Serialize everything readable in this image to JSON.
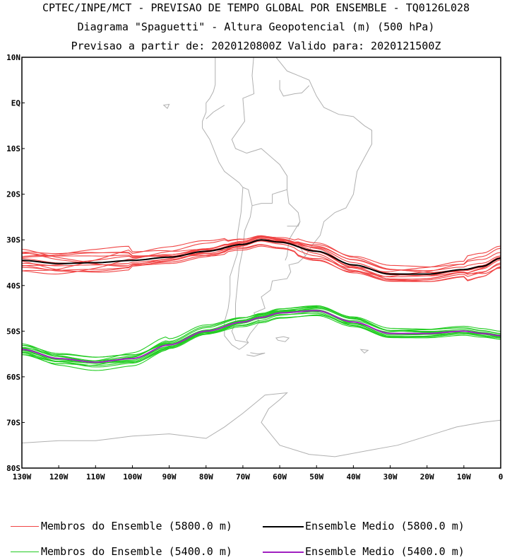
{
  "titles": {
    "line1": "CPTEC/INPE/MCT - PREVISAO DE TEMPO GLOBAL POR ENSEMBLE - TQ0126L028",
    "line2": "Diagrama \"Spaguetti\" - Altura Geopotencial (m) (500 hPa)",
    "line3": "Previsao a partir de: 2020120800Z  Valido para: 2020121500Z"
  },
  "axes": {
    "lat_labels": [
      "10N",
      "EQ",
      "10S",
      "20S",
      "30S",
      "40S",
      "50S",
      "60S",
      "70S",
      "80S"
    ],
    "lon_labels": [
      "130W",
      "120W",
      "110W",
      "100W",
      "90W",
      "80W",
      "70W",
      "60W",
      "50W",
      "40W",
      "30W",
      "20W",
      "10W",
      "0"
    ],
    "lon_range": [
      -130,
      0
    ],
    "lat_range": [
      -80,
      10
    ]
  },
  "colors": {
    "members_5800": "#f04545",
    "mean_5800": "#000000",
    "members_5400": "#22cc22",
    "mean_5400": "#a020c0",
    "coast": "#b0b0b0"
  },
  "legend": {
    "members_5800": "Membros do Ensemble (5800.0 m)",
    "mean_5800": "Ensemble Medio (5800.0 m)",
    "members_5400": "Membros do Ensemble (5400.0 m)",
    "mean_5400": "Ensemble Medio (5400.0 m)"
  },
  "chart_data": {
    "type": "line",
    "x": [
      -130,
      -120,
      -110,
      -100,
      -90,
      -80,
      -70,
      -65,
      -60,
      -50,
      -40,
      -30,
      -20,
      -10,
      -5,
      0
    ],
    "series": [
      {
        "name": "Ensemble Medio (5800.0 m)",
        "values": [
          -34.5,
          -35.2,
          -35,
          -34.5,
          -33.8,
          -32.5,
          -31,
          -30,
          -30.5,
          -32.5,
          -35.5,
          -37.5,
          -37.5,
          -36.5,
          -35.8,
          -34
        ]
      },
      {
        "name": "Ensemble Medio (5400.0 m)",
        "values": [
          -54,
          -56,
          -56.8,
          -56,
          -53,
          -50,
          -48,
          -47,
          -46,
          -45.5,
          -48,
          -50.5,
          -50.5,
          -50,
          -50.5,
          -51
        ]
      }
    ]
  }
}
